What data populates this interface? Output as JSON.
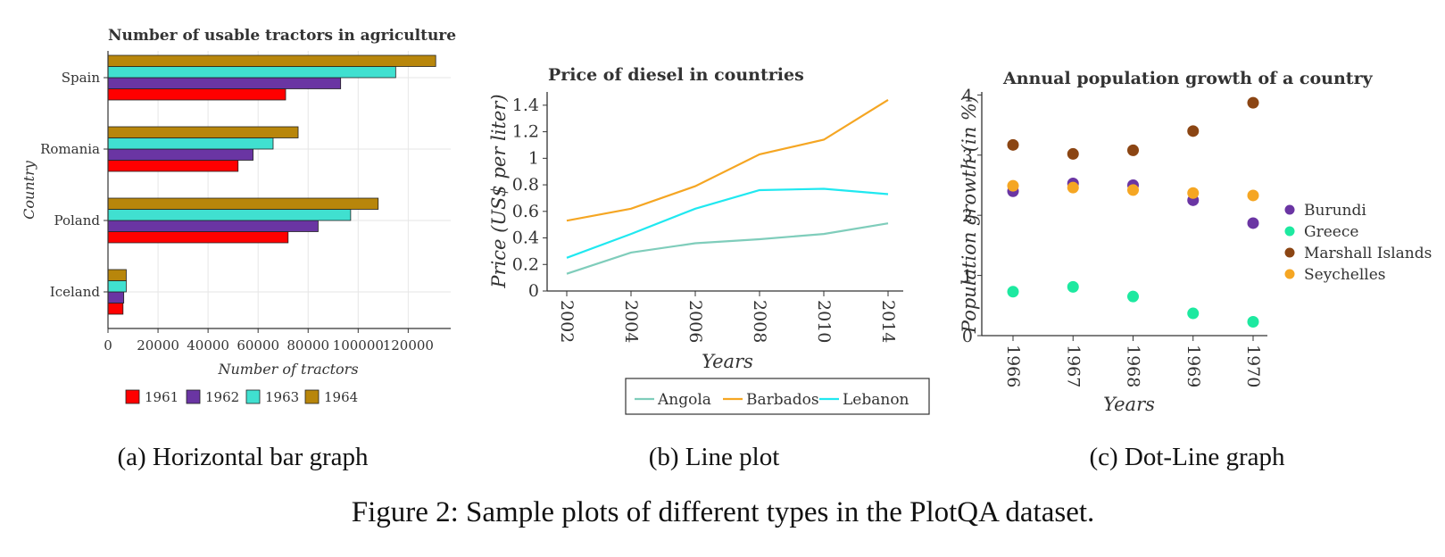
{
  "figure": {
    "caption": "Figure 2: Sample plots of different types in the PlotQA dataset.",
    "subcaptions": [
      "(a) Horizontal bar graph",
      "(b) Line plot",
      "(c) Dot-Line graph"
    ]
  },
  "chart_data": [
    {
      "type": "bar",
      "orientation": "horizontal",
      "title": "Number of usable tractors in agriculture",
      "xlabel": "Number of tractors",
      "ylabel": "Country",
      "categories": [
        "Spain",
        "Romania",
        "Poland",
        "Iceland"
      ],
      "series": [
        {
          "name": "1961",
          "color": "#ff0000",
          "values": [
            71000,
            52000,
            72000,
            6000
          ]
        },
        {
          "name": "1962",
          "color": "#6a35a3",
          "values": [
            93000,
            58000,
            84000,
            6300
          ]
        },
        {
          "name": "1963",
          "color": "#40e0d0",
          "values": [
            115000,
            66000,
            97000,
            7300
          ]
        },
        {
          "name": "1964",
          "color": "#b8860b",
          "values": [
            131000,
            76000,
            108000,
            7300
          ]
        }
      ],
      "xlim": [
        0,
        137000
      ],
      "xticks": [
        0,
        20000,
        40000,
        60000,
        80000,
        100000,
        120000
      ],
      "xtick_labels": [
        "0",
        "20000",
        "40000",
        "60000",
        "80000",
        "100000",
        "120000"
      ],
      "grid": true,
      "legend_position": "bottom"
    },
    {
      "type": "line",
      "title": "Price of diesel in countries",
      "xlabel": "Years",
      "ylabel": "Price (US$ per liter)",
      "x": [
        2002,
        2004,
        2006,
        2008,
        2010,
        2014
      ],
      "series": [
        {
          "name": "Angola",
          "color": "#7fcdbb",
          "values": [
            0.13,
            0.29,
            0.36,
            0.39,
            0.43,
            0.51
          ]
        },
        {
          "name": "Barbados",
          "color": "#f5a623",
          "values": [
            0.53,
            0.62,
            0.79,
            1.03,
            1.14,
            1.44
          ]
        },
        {
          "name": "Lebanon",
          "color": "#20e8f0",
          "values": [
            0.25,
            0.43,
            0.62,
            0.76,
            0.77,
            0.73
          ]
        }
      ],
      "xtick_labels": [
        "2002",
        "2004",
        "2006",
        "2008",
        "2010",
        "2014"
      ],
      "ylim": [
        0,
        1.5
      ],
      "yticks": [
        0,
        0.2,
        0.4,
        0.6,
        0.8,
        1,
        1.2,
        1.4
      ],
      "ytick_labels": [
        "0",
        "0.2",
        "0.4",
        "0.6",
        "0.8",
        "1",
        "1.2",
        "1.4"
      ],
      "grid": false,
      "legend_position": "bottom"
    },
    {
      "type": "scatter",
      "title": "Annual population growth of a country",
      "xlabel": "Years",
      "ylabel": "Population growth (in %)",
      "x": [
        1966,
        1967,
        1968,
        1969,
        1970
      ],
      "series": [
        {
          "name": "Burundi",
          "color": "#6a35a3",
          "values": [
            2.4,
            2.53,
            2.5,
            2.25,
            1.87
          ]
        },
        {
          "name": "Greece",
          "color": "#1de9a0",
          "values": [
            0.73,
            0.81,
            0.65,
            0.37,
            0.23
          ]
        },
        {
          "name": "Marshall Islands",
          "color": "#8b4513",
          "values": [
            3.17,
            3.02,
            3.08,
            3.4,
            3.87
          ]
        },
        {
          "name": "Seychelles",
          "color": "#f5a623",
          "values": [
            2.49,
            2.46,
            2.42,
            2.37,
            2.33
          ]
        }
      ],
      "xtick_labels": [
        "1966",
        "1967",
        "1968",
        "1969",
        "1970"
      ],
      "ylim": [
        0,
        4.05
      ],
      "yticks": [
        0,
        1,
        2,
        3,
        4
      ],
      "ytick_labels": [
        "0",
        "1",
        "2",
        "3",
        "4"
      ],
      "grid": false,
      "legend_position": "right"
    }
  ]
}
